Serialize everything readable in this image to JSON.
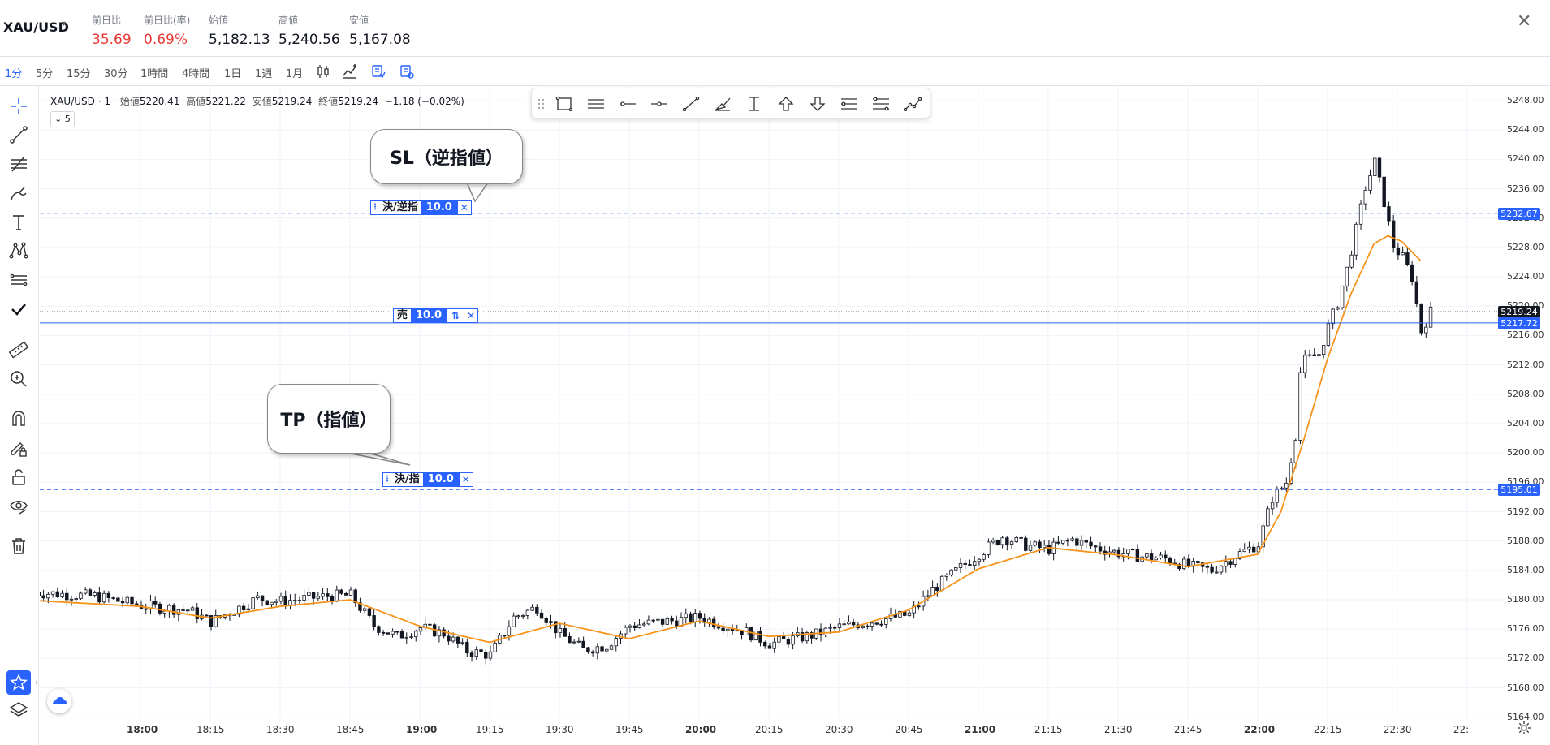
{
  "header": {
    "symbol": "XAU/USD",
    "stats": [
      {
        "label": "前日比",
        "value": "35.69",
        "negative": true
      },
      {
        "label": "前日比(率)",
        "value": "0.69%",
        "negative": true
      },
      {
        "label": "始値",
        "value": "5,182.13",
        "negative": false
      },
      {
        "label": "高値",
        "value": "5,240.56",
        "negative": false
      },
      {
        "label": "安値",
        "value": "5,167.08",
        "negative": false
      }
    ],
    "close_glyph": "✕"
  },
  "timeframes": {
    "items": [
      "1分",
      "5分",
      "15分",
      "30分",
      "1時間",
      "4時間",
      "1日",
      "1週",
      "1月"
    ],
    "active": "1分",
    "icons": [
      "candle-style-icon",
      "indicators-icon",
      "alert-icon",
      "settings-list-icon"
    ]
  },
  "left_toolbar": {
    "tools": [
      "crosshair-icon",
      "trend-line-icon",
      "fib-icon",
      "brush-icon",
      "text-icon",
      "pattern-icon",
      "ruler-lines-icon",
      "checkmark-icon",
      "measure-icon",
      "zoom-icon",
      "magnet-icon",
      "lock-draw-icon",
      "lock-icon",
      "eye-icon",
      "trash-icon",
      "star-icon",
      "layers-icon"
    ]
  },
  "legend": {
    "symbol": "XAU/USD · 1",
    "open_label": "始値",
    "open": "5220.41",
    "high_label": "高値",
    "high": "5221.22",
    "low_label": "安値",
    "low": "5219.24",
    "close_label": "終値",
    "close": "5219.24",
    "change": "−1.18 (−0.02%)",
    "indicator_count": "5"
  },
  "drawing_toolbar": {
    "tools": [
      "drag-handle-icon",
      "rectangle-icon",
      "parallel-lines-icon",
      "horizontal-ray-icon",
      "horizontal-line-icon",
      "trend-line-icon",
      "brush-tool-icon",
      "vertical-range-icon",
      "arrow-up-icon",
      "arrow-down-icon",
      "long-position-icon",
      "short-position-icon",
      "path-icon"
    ]
  },
  "orders": {
    "sl": {
      "label": "決/逆指",
      "qty": "10.0",
      "price": "5232.67"
    },
    "position": {
      "label": "売",
      "qty": "10.0",
      "price": "5217.72",
      "arrows": "⇅"
    },
    "tp": {
      "label": "決/指",
      "qty": "10.0",
      "price": "5195.01"
    },
    "x_glyph": "✕"
  },
  "callouts": {
    "sl": "SL（逆指値）",
    "tp": "TP（指値）"
  },
  "last_price": "5219.24",
  "colors": {
    "accent": "#2962ff",
    "order_tag": "#2962ff",
    "last_tag": "#131722",
    "ma_line": "#f7931a",
    "negative": "#e53935"
  },
  "chart_data": {
    "type": "candlestick",
    "x_tick_labels": [
      "18:00",
      "18:15",
      "18:30",
      "18:45",
      "19:00",
      "19:15",
      "19:30",
      "19:45",
      "20:00",
      "20:15",
      "20:30",
      "20:45",
      "21:00",
      "21:15",
      "21:30",
      "21:45",
      "22:00",
      "22:15",
      "22:30",
      "22:"
    ],
    "bold_x_ticks": [
      "18:00",
      "19:00",
      "20:00",
      "21:00",
      "22:00"
    ],
    "y_tick_labels": [
      "5248.00",
      "5244.00",
      "5240.00",
      "5236.00",
      "5232.00",
      "5228.00",
      "5224.00",
      "5220.00",
      "5216.00",
      "5212.00",
      "5208.00",
      "5204.00",
      "5200.00",
      "5196.00",
      "5192.00",
      "5188.00",
      "5184.00",
      "5180.00",
      "5176.00",
      "5172.00",
      "5168.00",
      "5164.00"
    ],
    "ylim": [
      5162.2,
      5250
    ],
    "x_minutes_range": [
      "17:37",
      "22:45"
    ],
    "close_path": [
      [
        "17:37",
        5181.0
      ],
      [
        "17:50",
        5180.5
      ],
      [
        "18:00",
        5179.2
      ],
      [
        "18:10",
        5178.6
      ],
      [
        "18:15",
        5177.0
      ],
      [
        "18:25",
        5180.2
      ],
      [
        "18:30",
        5179.8
      ],
      [
        "18:40",
        5180.5
      ],
      [
        "18:45",
        5180.6
      ],
      [
        "18:50",
        5176.5
      ],
      [
        "18:55",
        5175.0
      ],
      [
        "19:00",
        5176.2
      ],
      [
        "19:05",
        5175.4
      ],
      [
        "19:10",
        5173.0
      ],
      [
        "19:15",
        5172.5
      ],
      [
        "19:20",
        5177.6
      ],
      [
        "19:25",
        5179.0
      ],
      [
        "19:30",
        5175.3
      ],
      [
        "19:35",
        5173.2
      ],
      [
        "19:40",
        5173.8
      ],
      [
        "19:45",
        5176.5
      ],
      [
        "19:55",
        5177.2
      ],
      [
        "20:00",
        5177.6
      ],
      [
        "20:10",
        5175.6
      ],
      [
        "20:15",
        5174.0
      ],
      [
        "20:25",
        5175.3
      ],
      [
        "20:30",
        5176.3
      ],
      [
        "20:40",
        5177.4
      ],
      [
        "20:45",
        5178.0
      ],
      [
        "20:50",
        5181.4
      ],
      [
        "20:55",
        5183.9
      ],
      [
        "21:00",
        5186.3
      ],
      [
        "21:05",
        5188.6
      ],
      [
        "21:10",
        5187.4
      ],
      [
        "21:15",
        5186.9
      ],
      [
        "21:20",
        5188.2
      ],
      [
        "21:25",
        5187.1
      ],
      [
        "21:30",
        5186.4
      ],
      [
        "21:35",
        5185.9
      ],
      [
        "21:40",
        5185.6
      ],
      [
        "21:45",
        5184.6
      ],
      [
        "21:50",
        5184.0
      ],
      [
        "21:55",
        5186.0
      ],
      [
        "22:00",
        5187.6
      ],
      [
        "22:03",
        5193.9
      ],
      [
        "22:06",
        5196.0
      ],
      [
        "22:08",
        5202.5
      ],
      [
        "22:09",
        5211.0
      ],
      [
        "22:10",
        5212.6
      ],
      [
        "22:13",
        5213.5
      ],
      [
        "22:15",
        5217.2
      ],
      [
        "22:17",
        5220.5
      ],
      [
        "22:19",
        5225.0
      ],
      [
        "22:21",
        5230.4
      ],
      [
        "22:23",
        5236.2
      ],
      [
        "22:25",
        5239.6
      ],
      [
        "22:27",
        5234.2
      ],
      [
        "22:29",
        5228.2
      ],
      [
        "22:31",
        5226.6
      ],
      [
        "22:33",
        5223.9
      ],
      [
        "22:35",
        5216.6
      ],
      [
        "22:37",
        5219.24
      ]
    ],
    "ma_path": [
      [
        "17:37",
        5179.9
      ],
      [
        "18:00",
        5179.1
      ],
      [
        "18:15",
        5177.5
      ],
      [
        "18:30",
        5179.1
      ],
      [
        "18:45",
        5180.0
      ],
      [
        "19:00",
        5176.4
      ],
      [
        "19:15",
        5174.2
      ],
      [
        "19:30",
        5176.8
      ],
      [
        "19:45",
        5174.7
      ],
      [
        "20:00",
        5177.1
      ],
      [
        "20:15",
        5175.0
      ],
      [
        "20:30",
        5175.6
      ],
      [
        "20:45",
        5178.6
      ],
      [
        "21:00",
        5184.2
      ],
      [
        "21:15",
        5187.1
      ],
      [
        "21:30",
        5186.1
      ],
      [
        "21:45",
        5184.5
      ],
      [
        "22:00",
        5186.2
      ],
      [
        "22:05",
        5192.0
      ],
      [
        "22:10",
        5202.0
      ],
      [
        "22:15",
        5212.8
      ],
      [
        "22:20",
        5221.6
      ],
      [
        "22:25",
        5228.5
      ],
      [
        "22:28",
        5229.6
      ],
      [
        "22:31",
        5228.8
      ],
      [
        "22:35",
        5226.2
      ]
    ],
    "order_levels": {
      "sl": 5232.67,
      "position": 5217.72,
      "tp": 5195.01,
      "last": 5219.24
    }
  }
}
